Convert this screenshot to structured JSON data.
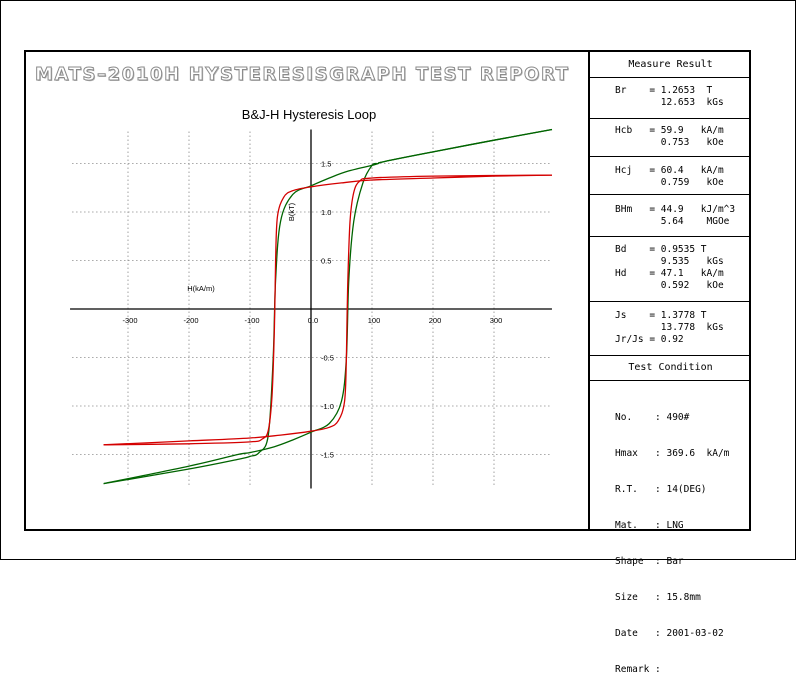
{
  "report": {
    "title": "MATS–2010H HYSTERESISGRAPH TEST REPORT"
  },
  "chart_data": {
    "type": "line",
    "title": "B&J-H Hysteresis Loop",
    "xlabel": "H(kA/m)",
    "ylabel": "B(kT)",
    "xlim": [
      -395,
      395
    ],
    "ylim": [
      -1.85,
      1.85
    ],
    "xticks": [
      -300,
      -200,
      -100,
      0,
      100,
      200,
      300
    ],
    "yticks": [
      -1.5,
      -1.0,
      -0.5,
      0.0,
      0.5,
      1.0,
      1.5
    ],
    "xtick_labels": [
      "-300",
      "-200",
      "-100",
      "0.0",
      "100",
      "200",
      "300"
    ],
    "ytick_labels": [
      "-1.5",
      "-1.0",
      "-0.5",
      "0.0",
      "0.5",
      "1.0",
      "1.5"
    ],
    "grid": true,
    "series": [
      {
        "color": "#006400",
        "values_note_free": true,
        "branches": [
          {
            "x": [
              -340,
              -200,
              -120,
              -100,
              -85,
              -70,
              -62,
              -58,
              -50,
              -30,
              0,
              30,
              60,
              100,
              110,
              120,
              200,
              300,
              395
            ],
            "y": [
              -1.8,
              -1.65,
              -1.55,
              -1.52,
              -1.48,
              -1.3,
              -0.5,
              0.3,
              0.9,
              1.18,
              1.27,
              1.35,
              1.42,
              1.48,
              1.5,
              1.52,
              1.62,
              1.74,
              1.85
            ]
          },
          {
            "x": [
              395,
              300,
              200,
              120,
              110,
              100,
              85,
              70,
              62,
              58,
              50,
              30,
              0,
              -30,
              -60,
              -100,
              -120,
              -200,
              -340
            ],
            "y": [
              1.85,
              1.74,
              1.62,
              1.52,
              1.5,
              1.48,
              1.3,
              0.9,
              0.3,
              -0.5,
              -0.95,
              -1.18,
              -1.27,
              -1.35,
              -1.42,
              -1.48,
              -1.5,
              -1.62,
              -1.8
            ]
          }
        ]
      },
      {
        "color": "#d40000",
        "branches": [
          {
            "x": [
              -340,
              -200,
              -100,
              -80,
              -70,
              -64,
              -60,
              -58,
              -55,
              -45,
              -30,
              0,
              50,
              100,
              200,
              300,
              395
            ],
            "y": [
              -1.4,
              -1.39,
              -1.37,
              -1.34,
              -1.25,
              -0.9,
              -0.2,
              0.5,
              0.95,
              1.15,
              1.22,
              1.26,
              1.3,
              1.33,
              1.35,
              1.37,
              1.38
            ]
          },
          {
            "x": [
              395,
              200,
              100,
              80,
              70,
              64,
              60,
              58,
              55,
              45,
              30,
              0,
              -50,
              -100,
              -200,
              -340
            ],
            "y": [
              1.38,
              1.37,
              1.35,
              1.32,
              1.2,
              0.9,
              0.2,
              -0.5,
              -0.95,
              -1.15,
              -1.22,
              -1.26,
              -1.3,
              -1.33,
              -1.36,
              -1.4
            ]
          }
        ]
      }
    ]
  },
  "measure": {
    "header": "Measure Result",
    "br": [
      "Br    = 1.2653  T",
      "        12.653  kGs"
    ],
    "hcb": [
      "Hcb   = 59.9   kA/m",
      "        0.753   kOe"
    ],
    "hcj": [
      "Hcj   = 60.4   kA/m",
      "        0.759   kOe"
    ],
    "bhm": [
      "BHm   = 44.9   kJ/m^3",
      "        5.64    MGOe"
    ],
    "bdhd": [
      "Bd    = 0.9535 T",
      "        9.535   kGs",
      "Hd    = 47.1   kA/m",
      "        0.592   kOe"
    ],
    "js": [
      "Js    = 1.3778 T",
      "        13.778  kGs",
      "Jr/Js = 0.92"
    ]
  },
  "condition": {
    "header": "Test Condition",
    "lines": [
      "No.    : 490#",
      "Hmax   : 369.6  kA/m",
      "R.T.   : 14(DEG)",
      "Mat.   : LNG",
      "Shape  : Bar",
      "Size   : 15.8mm",
      "Date   : 2001-03-02",
      "Remark :"
    ]
  }
}
